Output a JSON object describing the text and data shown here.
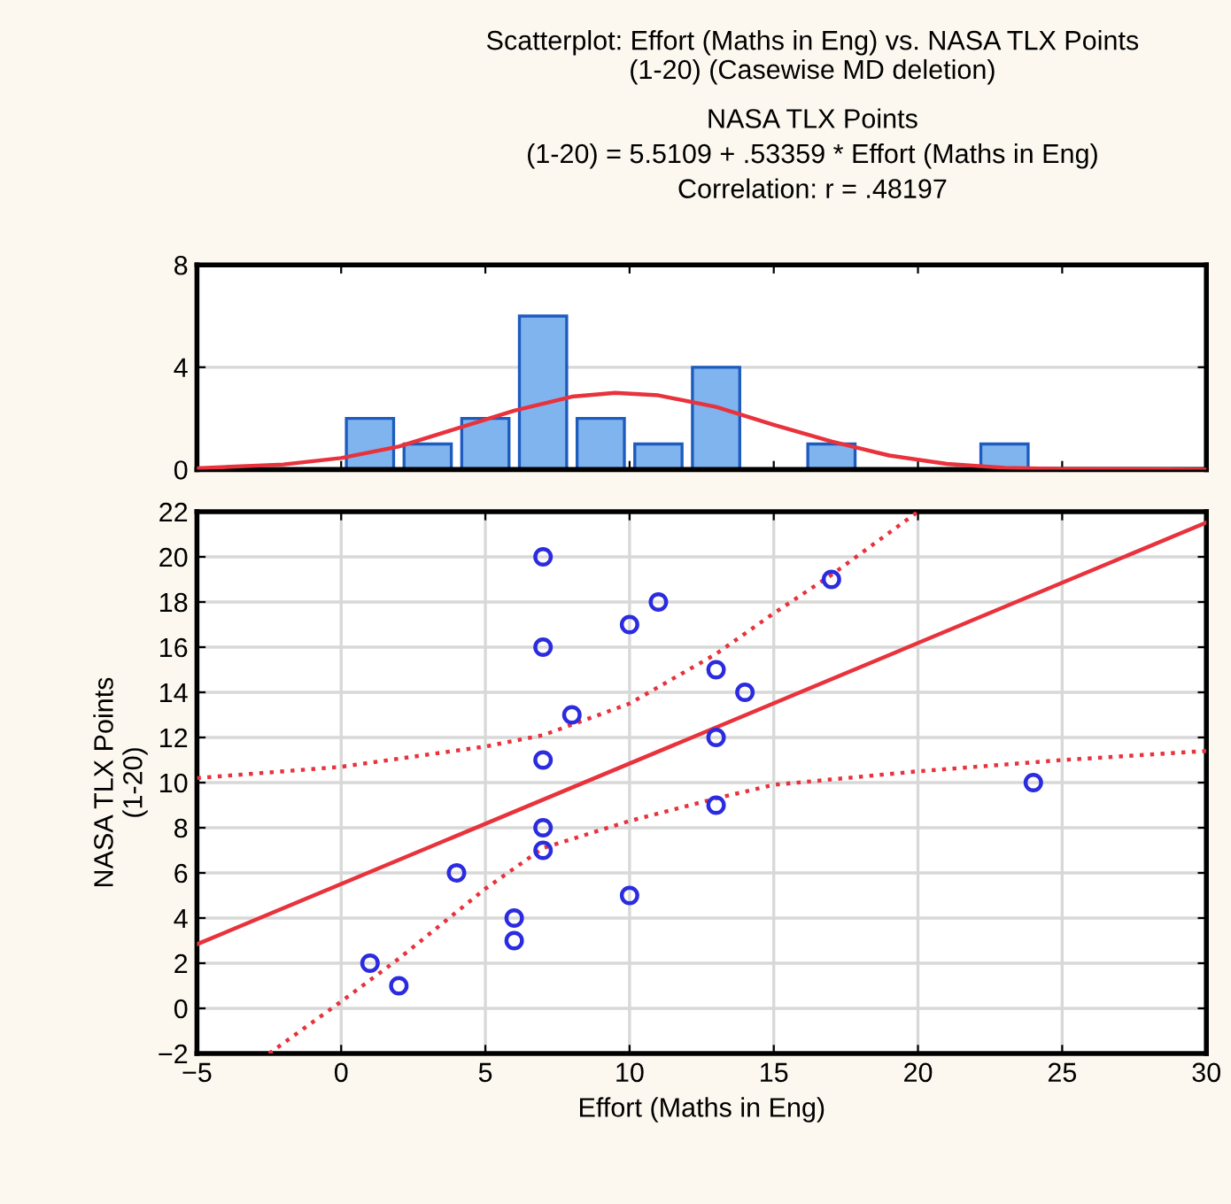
{
  "chart_data": [
    {
      "type": "histogram",
      "title": "Scatterplot: Effort (Maths in Eng) vs. NASA TLX Points\n(1-20) (Casewise MD deletion)",
      "subtitle": "NASA TLX Points\n(1-20) = 5.5109 + .53359 * Effort (Maths in Eng)\nCorrelation: r = .48197",
      "xlim": [
        -5,
        30
      ],
      "xticks": [
        -5,
        0,
        5,
        10,
        15,
        20,
        25,
        30
      ],
      "ylim": [
        0,
        8
      ],
      "yticks": [
        0,
        4,
        8
      ],
      "grid": "y",
      "tick_labels": "y",
      "series": [
        {
          "color": "#7fb4ee",
          "bins": [
            0,
            2,
            4,
            6,
            8,
            10,
            12,
            14,
            16,
            18,
            20,
            22,
            24
          ],
          "values": [
            2,
            1,
            2,
            6,
            2,
            1,
            4,
            0,
            1,
            0,
            0,
            1
          ]
        },
        {
          "type": "line",
          "color": "#e8323c",
          "x": [
            -5,
            -2,
            0,
            2,
            4,
            6,
            8,
            9.5,
            11,
            13,
            15,
            17,
            19,
            21,
            23,
            25,
            30
          ],
          "values": [
            0.05,
            0.2,
            0.45,
            0.9,
            1.6,
            2.3,
            2.85,
            3.0,
            2.9,
            2.45,
            1.75,
            1.1,
            0.55,
            0.22,
            0.07,
            0.02,
            0
          ]
        }
      ]
    },
    {
      "type": "scatter",
      "xlabel": "Effort (Maths in Eng)",
      "ylabel": "NASA TLX Points\n(1-20)",
      "xlim": [
        -5,
        30
      ],
      "xticks": [
        -5,
        0,
        5,
        10,
        15,
        20,
        25,
        30
      ],
      "ylim": [
        -2,
        22
      ],
      "yticks": [
        -2,
        0,
        2,
        4,
        6,
        8,
        10,
        12,
        14,
        16,
        18,
        20,
        22
      ],
      "grid": true,
      "series": [
        {
          "color": "#2b2be0",
          "marker": "circle",
          "x": [
            1,
            2,
            4,
            6,
            6,
            7,
            7,
            7,
            7,
            7,
            8,
            10,
            10,
            11,
            13,
            13,
            13,
            14,
            17,
            24
          ],
          "values": [
            2,
            1,
            6,
            4,
            3,
            20,
            16,
            11,
            8,
            7,
            13,
            17,
            5,
            18,
            15,
            12,
            9,
            14,
            19,
            10
          ]
        },
        {
          "type": "line",
          "color": "#e8323c",
          "line_style": "solid",
          "x": [
            -5,
            30
          ],
          "values": [
            2.84,
            21.52
          ]
        },
        {
          "type": "line",
          "color": "#e8323c",
          "line_style": "dotted",
          "x": [
            -5,
            0,
            5,
            7,
            10,
            13,
            15,
            17,
            20
          ],
          "values": [
            10.2,
            10.7,
            11.6,
            12.1,
            13.5,
            15.7,
            17.5,
            19.2,
            22
          ]
        },
        {
          "type": "line",
          "color": "#e8323c",
          "line_style": "dotted",
          "x": [
            -2.5,
            0,
            2,
            5,
            7,
            10,
            13,
            15,
            20,
            25,
            30
          ],
          "values": [
            -2,
            0.3,
            2.2,
            5.3,
            7.1,
            8.3,
            9.3,
            9.9,
            10.5,
            11,
            11.4
          ]
        }
      ]
    }
  ]
}
